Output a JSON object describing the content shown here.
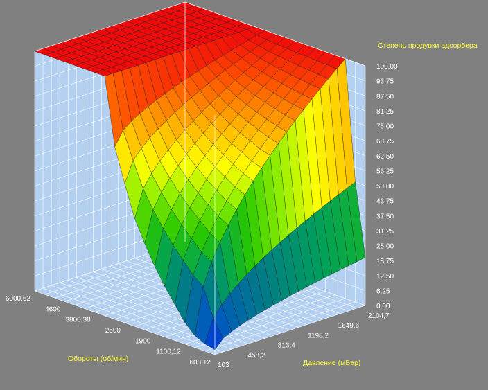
{
  "chart_data": {
    "type": "surface3d",
    "title": "",
    "zlabel": "Степень продувки адсорбера",
    "xlabel": "Обороты (об/мин)",
    "ylabel": "Давление (мБар)",
    "z_ticks": [
      "100,00",
      "93,75",
      "87,50",
      "81,25",
      "75,00",
      "68,75",
      "62,50",
      "56,25",
      "50,00",
      "43,75",
      "37,50",
      "31,25",
      "25,00",
      "18,75",
      "12,50",
      "6,25",
      "0,00"
    ],
    "x_ticks": [
      "6000,62",
      "4600",
      "3800,38",
      "2500",
      "1900",
      "1100,12",
      "600,12"
    ],
    "y_ticks": [
      "103",
      "458,2",
      "813,4",
      "1198,2",
      "1649,6",
      "2104,7"
    ],
    "zlim": [
      0,
      100
    ],
    "grid": true,
    "colors": {
      "background": "#808080",
      "wall": "#b4d0f0",
      "grid": "#ffffff",
      "tick_text": "#ffffff",
      "axis_title": "#ffff33"
    },
    "surface_low_pressure_edge": [
      2,
      3,
      5,
      9,
      15,
      21,
      28,
      36,
      45,
      58,
      72,
      100,
      100,
      100,
      100,
      100,
      100,
      100,
      100
    ],
    "surface_high_pressure_edge": [
      20,
      50,
      100,
      100,
      100,
      100,
      100,
      100,
      100,
      100,
      100,
      100,
      100,
      100,
      100,
      100,
      100,
      100,
      100
    ]
  }
}
